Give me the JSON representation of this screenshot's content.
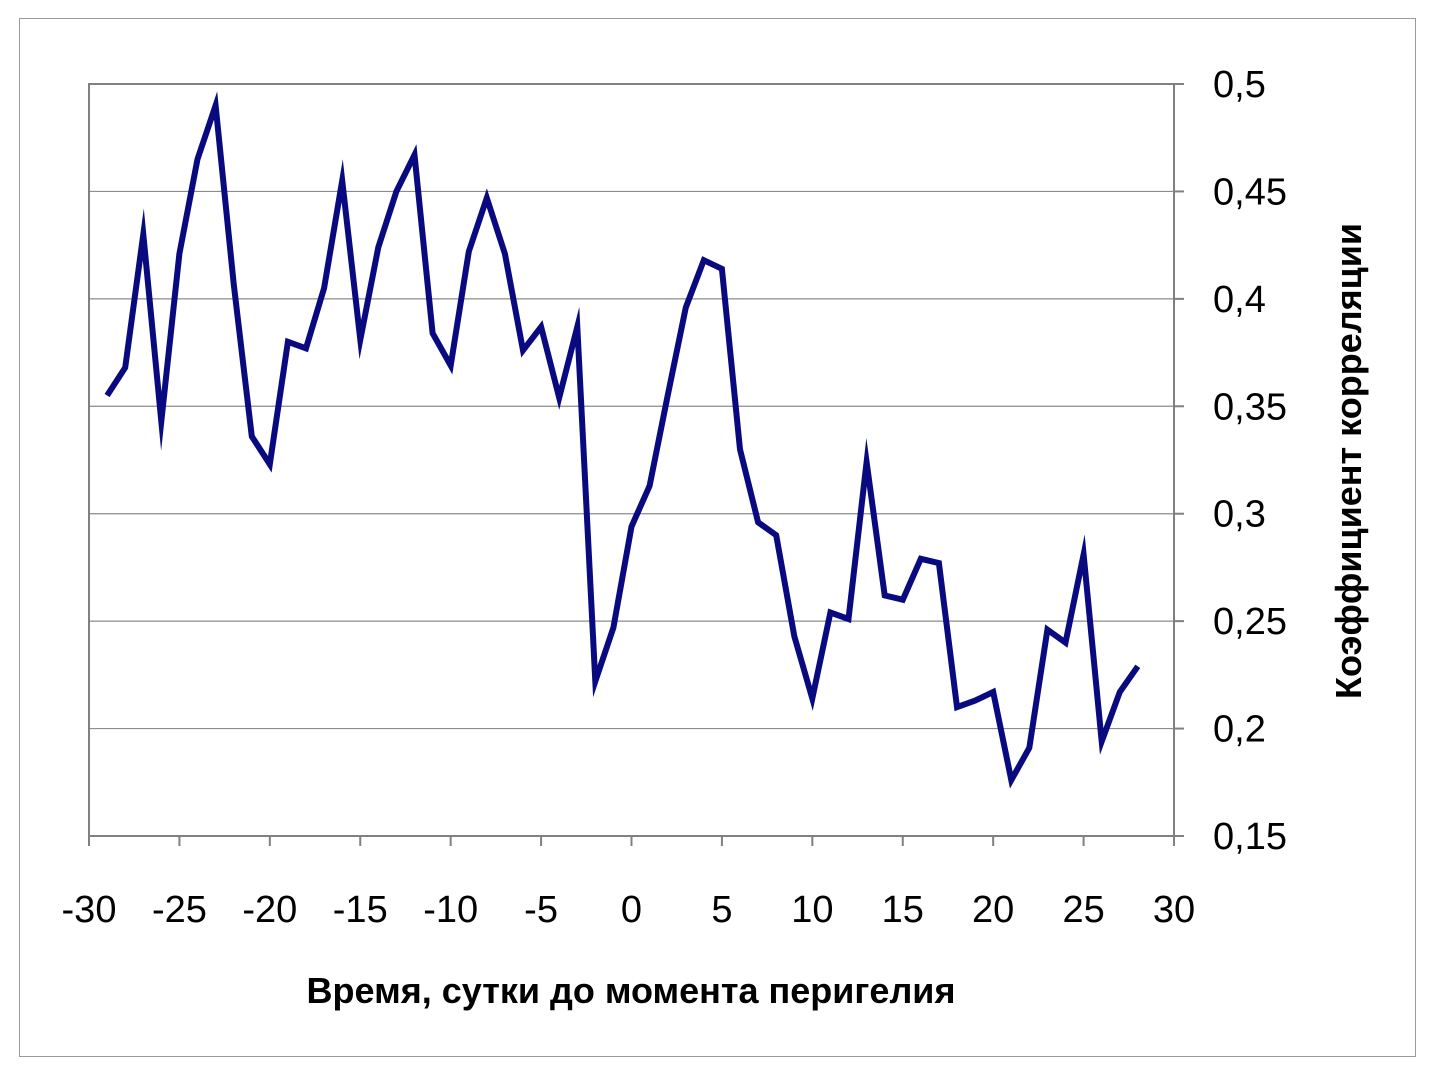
{
  "chart_data": {
    "type": "line",
    "title": "",
    "xlabel": "Время, сутки до момента перигелия",
    "ylabel": "Коэффициент корреляции",
    "xlim": [
      -30,
      30
    ],
    "ylim": [
      0.15,
      0.5
    ],
    "x_ticks": [
      -30,
      -25,
      -20,
      -15,
      -10,
      -5,
      0,
      5,
      10,
      15,
      20,
      25,
      30
    ],
    "x_tick_labels": [
      "-30",
      "-25",
      "-20",
      "-15",
      "-10",
      "-5",
      "0",
      "5",
      "10",
      "15",
      "20",
      "25",
      "30"
    ],
    "y_ticks": [
      0.15,
      0.2,
      0.25,
      0.3,
      0.35,
      0.4,
      0.45,
      0.5
    ],
    "y_tick_labels": [
      "0,15",
      "0,2",
      "0,25",
      "0,3",
      "0,35",
      "0,4",
      "0,45",
      "0,5"
    ],
    "y_axis_side": "right",
    "grid": "horizontal",
    "legend": "none",
    "line_color": "#0a0a80",
    "series": [
      {
        "x": [
          -29,
          -28,
          -27,
          -26,
          -25,
          -24,
          -23,
          -22,
          -21,
          -20,
          -19,
          -18,
          -17,
          -16,
          -15,
          -14,
          -13,
          -12,
          -11,
          -10,
          -9,
          -8,
          -7,
          -6,
          -5,
          -4,
          -3,
          -2,
          -1,
          0,
          1,
          2,
          3,
          4,
          5,
          6,
          7,
          8,
          9,
          10,
          11,
          12,
          13,
          14,
          15,
          16,
          17,
          18,
          19,
          20,
          21,
          22,
          23,
          24,
          25,
          26,
          27,
          28
        ],
        "values": [
          0.355,
          0.368,
          0.43,
          0.343,
          0.421,
          0.465,
          0.49,
          0.407,
          0.336,
          0.323,
          0.38,
          0.377,
          0.405,
          0.455,
          0.381,
          0.424,
          0.45,
          0.467,
          0.384,
          0.369,
          0.422,
          0.447,
          0.421,
          0.376,
          0.387,
          0.354,
          0.387,
          0.222,
          0.247,
          0.294,
          0.313,
          0.355,
          0.396,
          0.418,
          0.414,
          0.33,
          0.296,
          0.29,
          0.243,
          0.214,
          0.254,
          0.251,
          0.324,
          0.262,
          0.26,
          0.279,
          0.277,
          0.21,
          0.213,
          0.217,
          0.176,
          0.191,
          0.246,
          0.24,
          0.281,
          0.194,
          0.217,
          0.229
        ]
      }
    ]
  }
}
